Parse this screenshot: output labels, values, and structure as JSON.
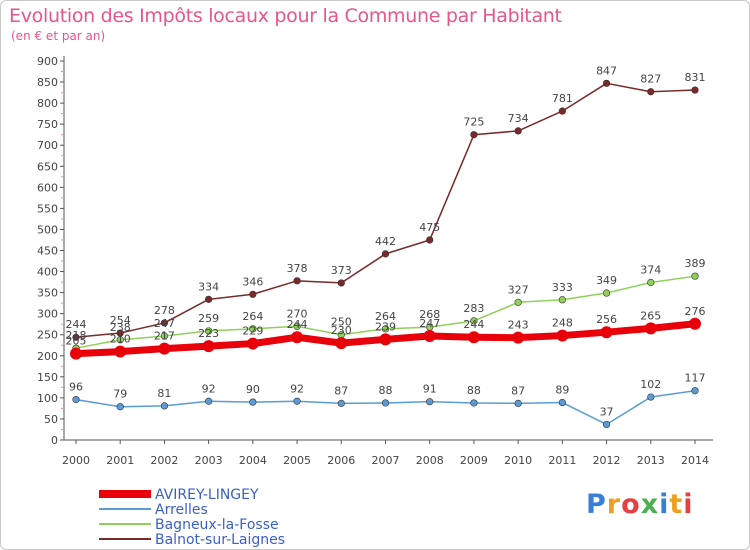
{
  "header": {
    "title": "Evolution des Impôts locaux pour la Commune par Habitant",
    "subtitle": "(en € et par an)"
  },
  "logo": {
    "text": "Proxiti",
    "colors": [
      "#3a7fd6",
      "#f0a020",
      "#e84040",
      "#4caf50"
    ]
  },
  "chart_data": {
    "type": "line",
    "title": "Evolution des Impôts locaux pour la Commune par Habitant",
    "subtitle": "(en € et par an)",
    "x": [
      "2000",
      "2001",
      "2002",
      "2003",
      "2004",
      "2005",
      "2006",
      "2007",
      "2008",
      "2009",
      "2010",
      "2011",
      "2012",
      "2013",
      "2014"
    ],
    "ylim": [
      0,
      900
    ],
    "yticks": [
      0,
      50,
      100,
      150,
      200,
      250,
      300,
      350,
      400,
      450,
      500,
      550,
      600,
      650,
      700,
      750,
      800,
      850,
      900
    ],
    "grid": false,
    "legend_position": "bottom-left",
    "series": [
      {
        "name": "AVIREY-LINGEY",
        "color": "#e8000a",
        "highlight": true,
        "values": [
          205,
          210,
          217,
          223,
          229,
          244,
          230,
          239,
          247,
          244,
          243,
          248,
          256,
          265,
          276
        ]
      },
      {
        "name": "Arrelles",
        "color": "#5b9bd5",
        "values": [
          96,
          79,
          81,
          92,
          90,
          92,
          87,
          88,
          91,
          88,
          87,
          89,
          37,
          102,
          117
        ]
      },
      {
        "name": "Bagneux-la-Fosse",
        "color": "#8fd05a",
        "values": [
          218,
          238,
          247,
          259,
          264,
          270,
          250,
          264,
          268,
          283,
          327,
          333,
          349,
          374,
          389
        ]
      },
      {
        "name": "Balnot-sur-Laignes",
        "color": "#7a2a2a",
        "values": [
          244,
          254,
          278,
          334,
          346,
          378,
          373,
          442,
          475,
          725,
          734,
          781,
          847,
          827,
          831
        ]
      }
    ]
  }
}
